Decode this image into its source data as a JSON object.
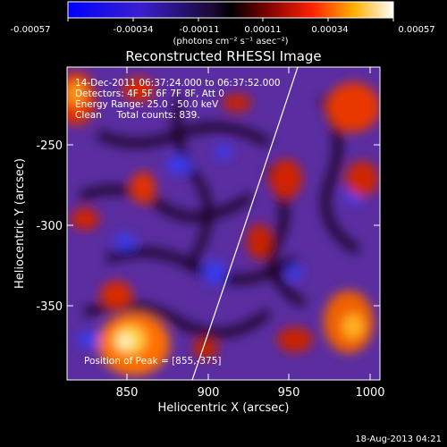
{
  "colorbar": {
    "tick_labels": [
      "-0.00057",
      "-0.00034",
      "-0.00011",
      "0.00011",
      "0.00034",
      "0.00057"
    ],
    "unit_label": "(photons cm⁻² s⁻¹ asec⁻²)"
  },
  "title": "Reconstructed RHESSI Image",
  "info": {
    "line1": "14-Dec-2011 06:37:24.000 to 06:37:52.000",
    "line2": "Detectors: 4F 5F 6F 7F 8F, Att 0",
    "line3": "Energy Range: 25.0 - 50.0 keV",
    "line4": "Clean     Total counts: 839."
  },
  "peak_label": "Position of Peak = [855,-375]",
  "axes": {
    "xlabel": "Heliocentric X (arcsec)",
    "ylabel": "Heliocentric Y (arcsec)",
    "x_ticks": [
      "850",
      "900",
      "950",
      "1000"
    ],
    "y_ticks": [
      "-250",
      "-300",
      "-350"
    ]
  },
  "footer_date": "18-Aug-2013 04:21"
}
